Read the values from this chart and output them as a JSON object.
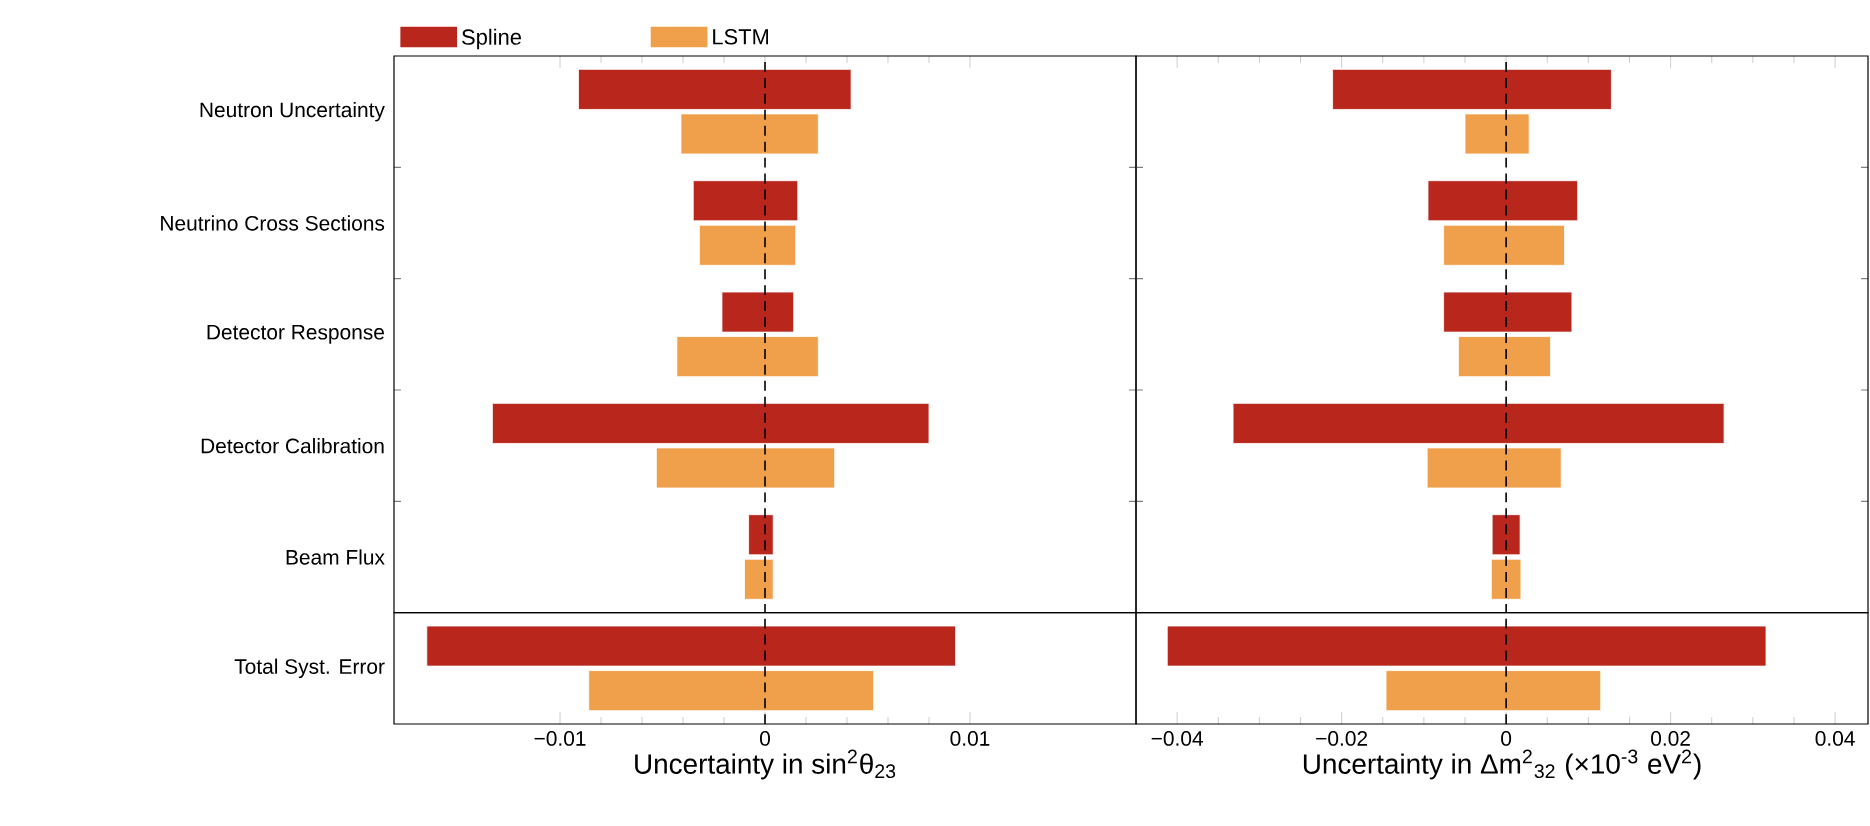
{
  "chart_data": [
    {
      "type": "bar",
      "orientation": "horizontal",
      "categories": [
        "Neutron Uncertainty",
        "Neutrino Cross Sections",
        "Detector Response",
        "Detector Calibration",
        "Beam Flux"
      ],
      "series": [
        {
          "name": "Spline",
          "color": "#b8261c",
          "base": [
            -0.0091,
            -0.0035,
            -0.0021,
            -0.0133,
            -0.0008
          ],
          "values": [
            0.0133,
            0.0051,
            0.0035,
            0.0213,
            0.0012
          ]
        },
        {
          "name": "LSTM",
          "color": "#f0a04b",
          "base": [
            -0.0041,
            -0.0032,
            -0.0043,
            -0.0053,
            -0.001
          ],
          "values": [
            0.0067,
            0.0047,
            0.0069,
            0.0087,
            0.0014
          ]
        }
      ],
      "xlim": [
        -0.0181,
        0.0181
      ],
      "xticks": [
        {
          "value": -0.01,
          "label": null
        },
        {
          "value": 0,
          "label": null
        },
        {
          "value": 0.01,
          "label": null
        }
      ],
      "ref_lines": [
        {
          "axis": "x",
          "value": 0,
          "line_style": "dashed",
          "color": "#000000"
        }
      ],
      "tick_labels": "y",
      "legend": "top"
    },
    {
      "type": "bar",
      "orientation": "horizontal",
      "xlabel": "Uncertainty in sin$^{2}$θ$_{23}$",
      "categories": [
        "Total Syst. Error"
      ],
      "series": [
        {
          "color": "#b8261c",
          "base": [
            -0.0165
          ],
          "values": [
            0.0258
          ]
        },
        {
          "color": "#f0a04b",
          "base": [
            -0.0086
          ],
          "values": [
            0.0139
          ]
        }
      ],
      "xlim": [
        -0.0181,
        0.0181
      ],
      "xticks": [
        {
          "value": -0.01,
          "label": "−0.01"
        },
        0,
        0.01
      ],
      "ref_lines": [
        {
          "axis": "x",
          "value": 0,
          "line_style": "dashed",
          "color": "#000000"
        }
      ]
    },
    {
      "type": "bar",
      "orientation": "horizontal",
      "categories": [
        null,
        null,
        null,
        null,
        null
      ],
      "series": [
        {
          "color": "#b8261c",
          "base": [
            -0.0211,
            -0.0095,
            -0.0076,
            -0.0332,
            -0.0017
          ],
          "values": [
            0.0339,
            0.0182,
            0.0156,
            0.0597,
            0.0034
          ]
        },
        {
          "color": "#f0a04b",
          "base": [
            -0.005,
            -0.0076,
            -0.0058,
            -0.0096,
            -0.0018
          ],
          "values": [
            0.0078,
            0.0147,
            0.0112,
            0.0163,
            0.0036
          ]
        }
      ],
      "xlim": [
        -0.045,
        0.044
      ],
      "xticks": [
        {
          "value": -0.04,
          "label": null
        },
        {
          "value": -0.02,
          "label": null
        },
        {
          "value": 0,
          "label": null
        },
        {
          "value": 0.02,
          "label": null
        },
        {
          "value": 0.04,
          "label": null
        }
      ],
      "ref_lines": [
        {
          "axis": "x",
          "value": 0,
          "line_style": "dashed",
          "color": "#000000"
        }
      ],
      "tick_labels": false
    },
    {
      "type": "bar",
      "orientation": "horizontal",
      "xlabel": "Uncertainty in Δm$^{2}$$_{32}$ (×10$^{-3}$ eV$^{2}$)",
      "categories": [
        null
      ],
      "series": [
        {
          "color": "#b8261c",
          "base": [
            -0.0412
          ],
          "values": [
            0.0728
          ]
        },
        {
          "color": "#f0a04b",
          "base": [
            -0.0146
          ],
          "values": [
            0.0261
          ]
        }
      ],
      "xlim": [
        -0.045,
        0.044
      ],
      "xticks": [
        {
          "value": -0.04,
          "label": "−0.04"
        },
        {
          "value": -0.02,
          "label": "−0.02"
        },
        0,
        0.02,
        0.04
      ],
      "ref_lines": [
        {
          "axis": "x",
          "value": 0,
          "line_style": "dashed",
          "color": "#000000"
        }
      ],
      "tick_labels": "x"
    }
  ]
}
